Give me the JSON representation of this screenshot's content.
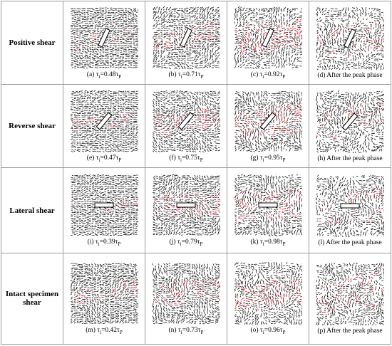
{
  "rows": [
    {
      "label": "Positive shear",
      "cells": [
        {
          "caption": [
            "(a) τ",
            "i",
            "=0.48τ",
            "P"
          ]
        },
        {
          "caption": [
            "(b) τ",
            "i",
            "=0.71τ",
            "P"
          ]
        },
        {
          "caption": [
            "(c) τ",
            "i",
            "=0.92τ",
            "P"
          ]
        },
        {
          "caption": [
            "(d) After the peak phase"
          ]
        }
      ]
    },
    {
      "label": "Reverse shear",
      "cells": [
        {
          "caption": [
            "(e) τ",
            "i",
            "=0.47τ",
            "P"
          ]
        },
        {
          "caption": [
            "(f) τ",
            "i",
            "=0.75τ",
            "P"
          ]
        },
        {
          "caption": [
            "(g) τ",
            "i",
            "=0.95τ",
            "P"
          ]
        },
        {
          "caption": [
            "(h) After the peak phase"
          ]
        }
      ]
    },
    {
      "label": "Lateral shear",
      "cells": [
        {
          "caption": [
            "(i) τ",
            "i",
            "=0.39τ",
            "P"
          ]
        },
        {
          "caption": [
            "(j) τ",
            "i",
            "=0.79τ",
            "P"
          ]
        },
        {
          "caption": [
            "(k) τ",
            "i",
            "=0.98τ",
            "P"
          ]
        },
        {
          "caption": [
            "(l) After the peak phase"
          ]
        }
      ]
    },
    {
      "label": "Intact specimen shear",
      "cells": [
        {
          "caption": [
            "(m) τ",
            "i",
            "=0.42τ",
            "P"
          ]
        },
        {
          "caption": [
            "(n) τ",
            "i",
            "=0.73τ",
            "P"
          ]
        },
        {
          "caption": [
            "(o) τ",
            "i",
            "=0.96τ",
            "P"
          ]
        },
        {
          "caption": [
            "(p) After the peak phase"
          ]
        }
      ]
    }
  ]
}
